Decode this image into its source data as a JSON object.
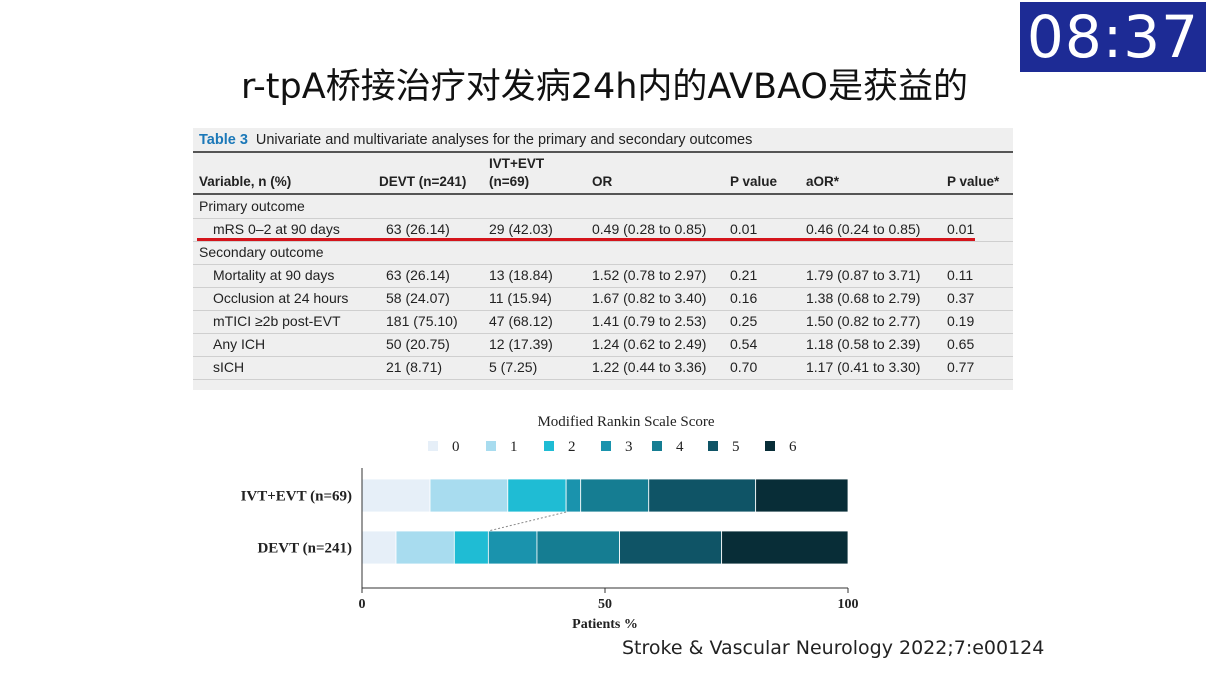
{
  "timer": "08:37",
  "title": "r-tpA桥接治疗对发病24h内的AVBAO是获益的",
  "table": {
    "label": "Table 3",
    "caption": "Univariate and multivariate analyses for the primary and secondary outcomes",
    "headers": {
      "variable": "Variable, n (%)",
      "devt": "DEVT (n=241)",
      "ivt_line1": "IVT+EVT",
      "ivt_line2": "(n=69)",
      "or": "OR",
      "p": "P value",
      "aor": "aOR*",
      "p2": "P value*"
    },
    "section_primary": "Primary outcome",
    "section_secondary": "Secondary outcome",
    "rows": [
      {
        "name": "mRS 0–2 at 90 days",
        "devt": "63 (26.14)",
        "ivt": "29 (42.03)",
        "or": "0.49 (0.28 to 0.85)",
        "p": "0.01",
        "aor": "0.46 (0.24 to 0.85)",
        "p2": "0.01"
      },
      {
        "name": "Mortality at 90 days",
        "devt": "63 (26.14)",
        "ivt": "13 (18.84)",
        "or": "1.52 (0.78 to 2.97)",
        "p": "0.21",
        "aor": "1.79 (0.87 to 3.71)",
        "p2": "0.11"
      },
      {
        "name": "Occlusion at 24 hours",
        "devt": "58 (24.07)",
        "ivt": "11 (15.94)",
        "or": "1.67 (0.82 to 3.40)",
        "p": "0.16",
        "aor": "1.38 (0.68 to 2.79)",
        "p2": "0.37"
      },
      {
        "name": "mTICI ≥2b post-EVT",
        "devt": "181 (75.10)",
        "ivt": "47 (68.12)",
        "or": "1.41 (0.79 to 2.53)",
        "p": "0.25",
        "aor": "1.50 (0.82 to 2.77)",
        "p2": "0.19"
      },
      {
        "name": "Any ICH",
        "devt": "50 (20.75)",
        "ivt": "12 (17.39)",
        "or": "1.24 (0.62 to 2.49)",
        "p": "0.54",
        "aor": "1.18 (0.58 to 2.39)",
        "p2": "0.65"
      },
      {
        "name": "sICH",
        "devt": "21 (8.71)",
        "ivt": "5 (7.25)",
        "or": "1.22 (0.44 to 3.36)",
        "p": "0.70",
        "aor": "1.17 (0.41 to 3.30)",
        "p2": "0.77"
      }
    ]
  },
  "chart_data": {
    "type": "bar",
    "orientation": "horizontal",
    "stacked": true,
    "title": "Modified Rankin Scale Score",
    "xlabel": "Patients %",
    "xlim": [
      0,
      100
    ],
    "xticks": [
      "0",
      "50",
      "100"
    ],
    "categories": [
      "IVT+EVT (n=69)",
      "DEVT (n=241)"
    ],
    "legend_position": "top",
    "series": [
      {
        "name": "0",
        "color": "#e6eff8",
        "values": [
          14.0,
          7.0
        ]
      },
      {
        "name": "1",
        "color": "#a8dcef",
        "values": [
          16.0,
          12.0
        ]
      },
      {
        "name": "2",
        "color": "#1fbcd4",
        "values": [
          12.0,
          7.0
        ]
      },
      {
        "name": "3",
        "color": "#1a93ad",
        "values": [
          3.0,
          10.0
        ]
      },
      {
        "name": "4",
        "color": "#157d92",
        "values": [
          14.0,
          17.0
        ]
      },
      {
        "name": "5",
        "color": "#0f5466",
        "values": [
          22.0,
          21.0
        ]
      },
      {
        "name": "6",
        "color": "#082d37",
        "values": [
          19.0,
          26.0
        ]
      }
    ]
  },
  "citation": "Stroke & Vascular Neurology 2022;7:e00124"
}
